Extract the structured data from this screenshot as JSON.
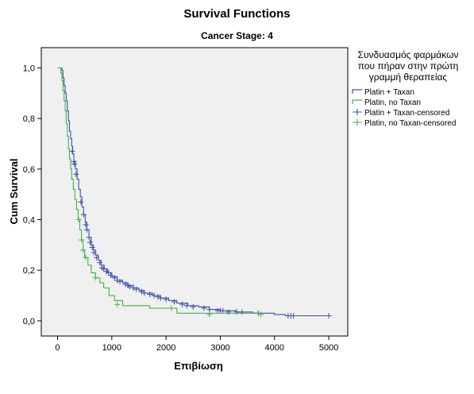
{
  "chart_data": {
    "type": "line",
    "title": "Survival Functions",
    "subtitle": "Cancer Stage: 4",
    "xlabel": "Επιβίωση",
    "ylabel": "Cum Survival",
    "xlim": [
      -300,
      5350
    ],
    "ylim": [
      -0.06,
      1.08
    ],
    "x_ticks": [
      0,
      1000,
      2000,
      3000,
      4000,
      5000
    ],
    "x_tick_labels": [
      "0",
      "1000",
      "2000",
      "3000",
      "4000",
      "5000"
    ],
    "y_ticks": [
      0.0,
      0.2,
      0.4,
      0.6,
      0.8,
      1.0
    ],
    "y_tick_labels": [
      "0,0",
      "0,2",
      "0,4",
      "0,6",
      "0,8",
      "1,0"
    ],
    "grid": false,
    "legend": {
      "placement": "right",
      "title_lines": [
        "Συνδυασμός φαρμάκων",
        "που πήραν στην πρώτη",
        "γραμμή θεραπείας"
      ],
      "entries": [
        "Platin + Taxan",
        "Platin, no Taxan",
        "Platin + Taxan-censored",
        "Platin, no Taxan-censored"
      ]
    },
    "series": [
      {
        "name": "Platin + Taxan",
        "color": "#3f4fa8",
        "steps": [
          [
            0,
            1.0
          ],
          [
            80,
            0.99
          ],
          [
            100,
            0.96
          ],
          [
            120,
            0.93
          ],
          [
            140,
            0.9
          ],
          [
            160,
            0.87
          ],
          [
            180,
            0.83
          ],
          [
            200,
            0.79
          ],
          [
            220,
            0.75
          ],
          [
            240,
            0.72
          ],
          [
            260,
            0.69
          ],
          [
            280,
            0.66
          ],
          [
            300,
            0.63
          ],
          [
            330,
            0.6
          ],
          [
            360,
            0.56
          ],
          [
            390,
            0.52
          ],
          [
            420,
            0.49
          ],
          [
            450,
            0.45
          ],
          [
            480,
            0.42
          ],
          [
            510,
            0.39
          ],
          [
            540,
            0.36
          ],
          [
            580,
            0.33
          ],
          [
            620,
            0.3
          ],
          [
            660,
            0.28
          ],
          [
            700,
            0.26
          ],
          [
            750,
            0.24
          ],
          [
            800,
            0.22
          ],
          [
            860,
            0.205
          ],
          [
            920,
            0.19
          ],
          [
            1000,
            0.175
          ],
          [
            1100,
            0.16
          ],
          [
            1200,
            0.15
          ],
          [
            1300,
            0.14
          ],
          [
            1400,
            0.13
          ],
          [
            1500,
            0.12
          ],
          [
            1600,
            0.11
          ],
          [
            1750,
            0.1
          ],
          [
            1900,
            0.09
          ],
          [
            2050,
            0.08
          ],
          [
            2200,
            0.07
          ],
          [
            2400,
            0.06
          ],
          [
            2600,
            0.055
          ],
          [
            2800,
            0.045
          ],
          [
            3000,
            0.04
          ],
          [
            3300,
            0.035
          ],
          [
            3600,
            0.03
          ],
          [
            4000,
            0.025
          ],
          [
            4200,
            0.02
          ],
          [
            5000,
            0.02
          ]
        ],
        "censored": [
          [
            270,
            0.67
          ],
          [
            300,
            0.63
          ],
          [
            310,
            0.62
          ],
          [
            340,
            0.58
          ],
          [
            430,
            0.47
          ],
          [
            480,
            0.42
          ],
          [
            520,
            0.38
          ],
          [
            540,
            0.36
          ],
          [
            580,
            0.33
          ],
          [
            600,
            0.31
          ],
          [
            640,
            0.29
          ],
          [
            670,
            0.27
          ],
          [
            720,
            0.25
          ],
          [
            780,
            0.23
          ],
          [
            820,
            0.21
          ],
          [
            850,
            0.205
          ],
          [
            900,
            0.195
          ],
          [
            940,
            0.19
          ],
          [
            980,
            0.18
          ],
          [
            1050,
            0.17
          ],
          [
            1100,
            0.16
          ],
          [
            1150,
            0.155
          ],
          [
            1250,
            0.145
          ],
          [
            1300,
            0.14
          ],
          [
            1330,
            0.135
          ],
          [
            1400,
            0.13
          ],
          [
            1450,
            0.125
          ],
          [
            1550,
            0.115
          ],
          [
            1600,
            0.11
          ],
          [
            1700,
            0.105
          ],
          [
            1780,
            0.1
          ],
          [
            1850,
            0.095
          ],
          [
            1900,
            0.09
          ],
          [
            2000,
            0.085
          ],
          [
            2150,
            0.075
          ],
          [
            2300,
            0.065
          ],
          [
            2380,
            0.06
          ],
          [
            2500,
            0.055
          ],
          [
            2700,
            0.05
          ],
          [
            2800,
            0.045
          ],
          [
            2950,
            0.04
          ],
          [
            3000,
            0.04
          ],
          [
            3050,
            0.04
          ],
          [
            3150,
            0.035
          ],
          [
            3300,
            0.035
          ],
          [
            3400,
            0.035
          ],
          [
            3700,
            0.03
          ],
          [
            4250,
            0.02
          ],
          [
            4300,
            0.02
          ],
          [
            4350,
            0.02
          ],
          [
            5000,
            0.02
          ]
        ]
      },
      {
        "name": "Platin, no Taxan",
        "color": "#3fb34f",
        "steps": [
          [
            0,
            1.0
          ],
          [
            60,
            0.98
          ],
          [
            80,
            0.95
          ],
          [
            100,
            0.91
          ],
          [
            120,
            0.87
          ],
          [
            140,
            0.83
          ],
          [
            160,
            0.78
          ],
          [
            180,
            0.73
          ],
          [
            200,
            0.68
          ],
          [
            220,
            0.64
          ],
          [
            240,
            0.6
          ],
          [
            260,
            0.56
          ],
          [
            290,
            0.52
          ],
          [
            320,
            0.48
          ],
          [
            350,
            0.44
          ],
          [
            380,
            0.4
          ],
          [
            410,
            0.36
          ],
          [
            440,
            0.32
          ],
          [
            470,
            0.28
          ],
          [
            500,
            0.25
          ],
          [
            560,
            0.22
          ],
          [
            620,
            0.19
          ],
          [
            700,
            0.17
          ],
          [
            780,
            0.15
          ],
          [
            850,
            0.13
          ],
          [
            950,
            0.1
          ],
          [
            1050,
            0.08
          ],
          [
            1200,
            0.06
          ],
          [
            1700,
            0.05
          ],
          [
            2200,
            0.03
          ],
          [
            3750,
            0.03
          ]
        ],
        "censored": [
          [
            390,
            0.4
          ],
          [
            440,
            0.32
          ],
          [
            470,
            0.28
          ],
          [
            520,
            0.25
          ],
          [
            700,
            0.17
          ],
          [
            1100,
            0.065
          ],
          [
            2100,
            0.05
          ],
          [
            2800,
            0.025
          ],
          [
            3750,
            0.025
          ]
        ]
      }
    ]
  }
}
